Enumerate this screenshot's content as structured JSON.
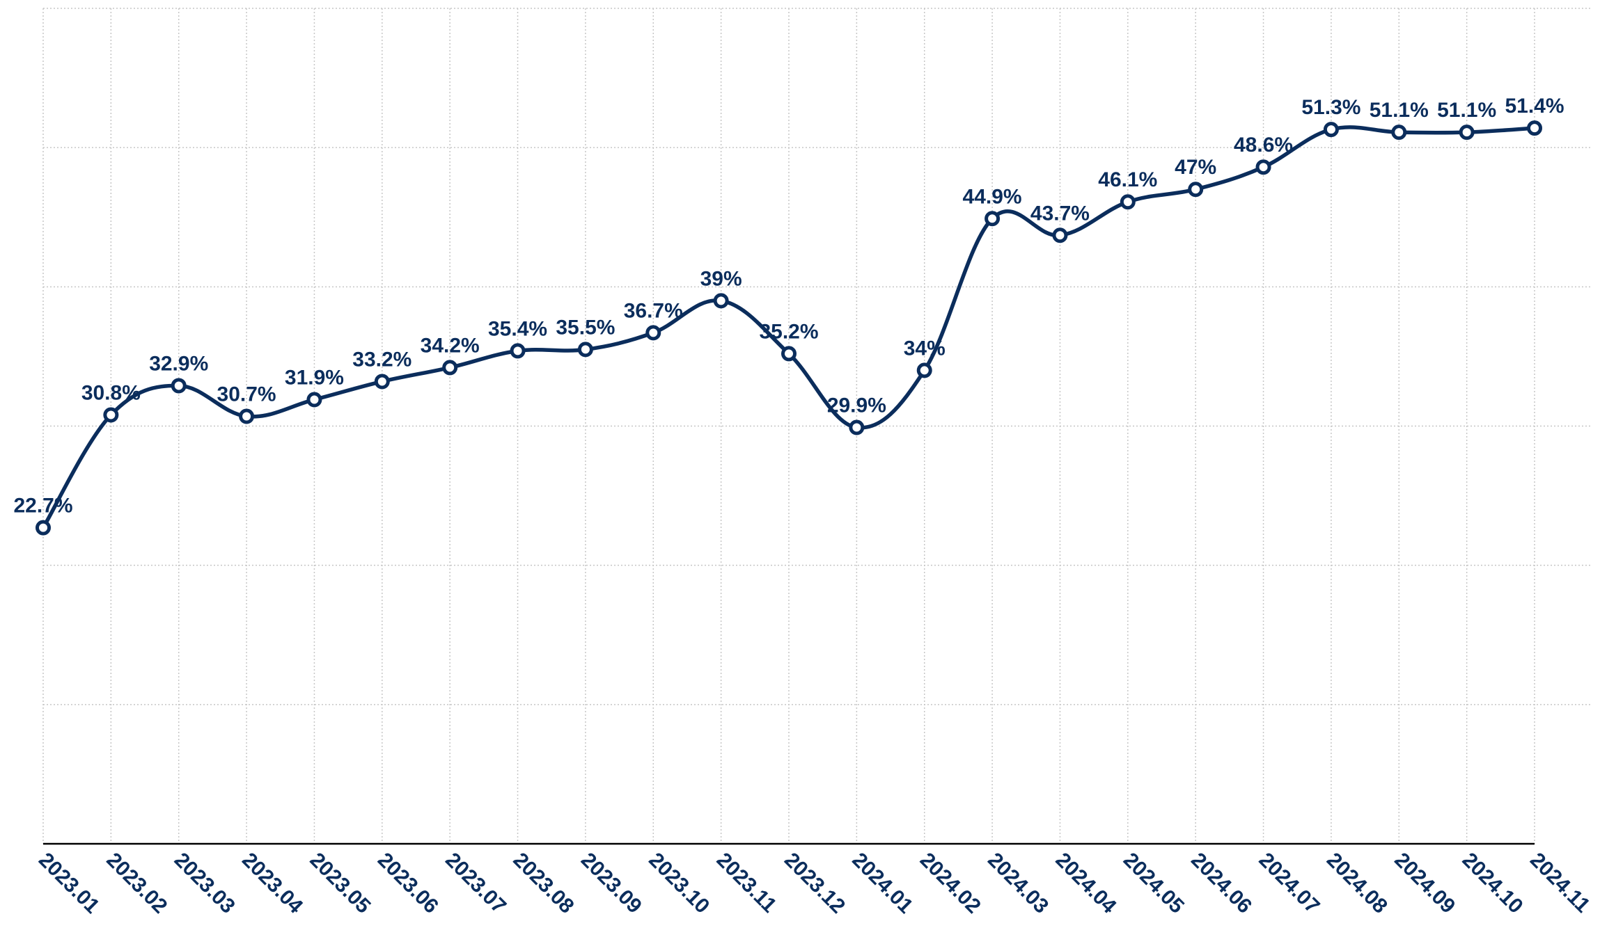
{
  "chart_data": {
    "type": "line",
    "title": "",
    "xlabel": "",
    "ylabel": "",
    "ylim": [
      0,
      60
    ],
    "grid": true,
    "categories": [
      "2023.01",
      "2023.02",
      "2023.03",
      "2023.04",
      "2023.05",
      "2023.06",
      "2023.07",
      "2023.08",
      "2023.09",
      "2023.10",
      "2023.11",
      "2023.12",
      "2024.01",
      "2024.02",
      "2024.03",
      "2024.04",
      "2024.05",
      "2024.06",
      "2024.07",
      "2024.08",
      "2024.09",
      "2024.10",
      "2024.11"
    ],
    "series": [
      {
        "values": [
          22.7,
          30.8,
          32.9,
          30.7,
          31.9,
          33.2,
          34.2,
          35.4,
          35.5,
          36.7,
          39,
          35.2,
          29.9,
          34,
          44.9,
          43.7,
          46.1,
          47,
          48.6,
          51.3,
          51.1,
          51.1,
          51.4
        ],
        "labels": [
          "22.7%",
          "30.8%",
          "32.9%",
          "30.7%",
          "31.9%",
          "33.2%",
          "34.2%",
          "35.4%",
          "35.5%",
          "36.7%",
          "39%",
          "35.2%",
          "29.9%",
          "34%",
          "44.9%",
          "43.7%",
          "46.1%",
          "47%",
          "48.6%",
          "51.3%",
          "51.1%",
          "51.1%",
          "51.4%"
        ],
        "color": "#0b2d5c"
      }
    ]
  }
}
